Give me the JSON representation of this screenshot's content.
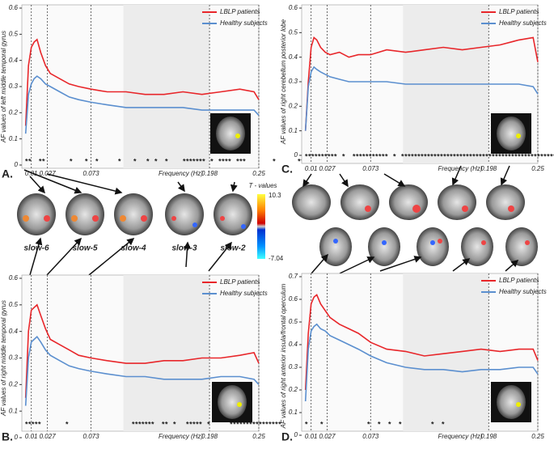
{
  "chart_data": [
    {
      "type": "line",
      "label": "A.",
      "ylabel": "AF values of left middle temporal gyrus",
      "xlabel": "Frequency (Hz)",
      "x": [
        0.004,
        0.007,
        0.01,
        0.013,
        0.016,
        0.02,
        0.025,
        0.03,
        0.04,
        0.05,
        0.06,
        0.073,
        0.09,
        0.11,
        0.13,
        0.15,
        0.17,
        0.19,
        0.21,
        0.23,
        0.245,
        0.25
      ],
      "series": [
        {
          "name": "LBLP patients",
          "color": "#e8262a",
          "values": [
            0.15,
            0.38,
            0.45,
            0.47,
            0.48,
            0.43,
            0.38,
            0.35,
            0.33,
            0.31,
            0.3,
            0.29,
            0.28,
            0.28,
            0.27,
            0.27,
            0.28,
            0.27,
            0.28,
            0.29,
            0.28,
            0.25
          ]
        },
        {
          "name": "Healthy subjects",
          "color": "#5b8fcf",
          "values": [
            0.12,
            0.27,
            0.31,
            0.33,
            0.34,
            0.33,
            0.31,
            0.3,
            0.28,
            0.26,
            0.25,
            0.24,
            0.23,
            0.22,
            0.22,
            0.22,
            0.22,
            0.21,
            0.21,
            0.21,
            0.21,
            0.19
          ]
        }
      ],
      "xlim": [
        0,
        0.25
      ],
      "xticks": [
        0.01,
        0.027,
        0.073,
        0.198,
        0.25
      ],
      "ylim": [
        0,
        0.6
      ],
      "yticks": [
        0,
        0.1,
        0.2,
        0.3,
        0.4,
        0.5,
        0.6
      ],
      "significance_marks": "**   **          *     *   *        *     *    *  *   *      *******  *  ****  ***           *         ********"
    },
    {
      "type": "line",
      "label": "B.",
      "ylabel": "AF values of right middle temporal gyrus",
      "xlabel": "Frequency (Hz)",
      "x": [
        0.004,
        0.007,
        0.01,
        0.013,
        0.016,
        0.02,
        0.025,
        0.03,
        0.04,
        0.05,
        0.06,
        0.073,
        0.09,
        0.11,
        0.13,
        0.15,
        0.17,
        0.19,
        0.21,
        0.23,
        0.245,
        0.25
      ],
      "series": [
        {
          "name": "LBLP patients",
          "color": "#e8262a",
          "values": [
            0.15,
            0.4,
            0.48,
            0.49,
            0.5,
            0.46,
            0.41,
            0.37,
            0.35,
            0.33,
            0.31,
            0.3,
            0.29,
            0.28,
            0.28,
            0.29,
            0.29,
            0.3,
            0.3,
            0.31,
            0.32,
            0.28
          ]
        },
        {
          "name": "Healthy subjects",
          "color": "#5b8fcf",
          "values": [
            0.12,
            0.3,
            0.36,
            0.37,
            0.38,
            0.36,
            0.33,
            0.31,
            0.29,
            0.27,
            0.26,
            0.25,
            0.24,
            0.23,
            0.23,
            0.22,
            0.22,
            0.22,
            0.23,
            0.23,
            0.22,
            0.2
          ]
        }
      ],
      "xlim": [
        0,
        0.25
      ],
      "xticks": [
        0.01,
        0.027,
        0.073,
        0.198,
        0.25
      ],
      "ylim": [
        0,
        0.6
      ],
      "yticks": [
        0,
        0.1,
        0.2,
        0.3,
        0.4,
        0.5,
        0.6
      ],
      "significance_marks": "*****          *                          *******   **  *    *****  *        ****************"
    },
    {
      "type": "line",
      "label": "C.",
      "ylabel": "AF values of right cerebellum posterior lobe",
      "xlabel": "Frequency (Hz)",
      "x": [
        0.004,
        0.007,
        0.01,
        0.013,
        0.016,
        0.02,
        0.025,
        0.03,
        0.04,
        0.05,
        0.06,
        0.073,
        0.09,
        0.11,
        0.13,
        0.15,
        0.17,
        0.19,
        0.21,
        0.23,
        0.245,
        0.25
      ],
      "series": [
        {
          "name": "LBLP patients",
          "color": "#e8262a",
          "values": [
            0.1,
            0.3,
            0.44,
            0.48,
            0.47,
            0.44,
            0.42,
            0.41,
            0.42,
            0.4,
            0.41,
            0.41,
            0.43,
            0.42,
            0.43,
            0.44,
            0.43,
            0.44,
            0.45,
            0.47,
            0.48,
            0.38
          ]
        },
        {
          "name": "Healthy subjects",
          "color": "#5b8fcf",
          "values": [
            0.1,
            0.28,
            0.34,
            0.36,
            0.35,
            0.34,
            0.33,
            0.32,
            0.31,
            0.3,
            0.3,
            0.3,
            0.3,
            0.29,
            0.29,
            0.29,
            0.29,
            0.29,
            0.29,
            0.29,
            0.28,
            0.25
          ]
        }
      ],
      "xlim": [
        0,
        0.25
      ],
      "xticks": [
        0.01,
        0.027,
        0.073,
        0.198,
        0.25
      ],
      "ylim": [
        0,
        0.6
      ],
      "yticks": [
        0,
        0.1,
        0.2,
        0.3,
        0.4,
        0.5,
        0.6
      ],
      "significance_marks": "**********  *   ***********  *  **************************************************************"
    },
    {
      "type": "line",
      "label": "D.",
      "ylabel": "AF values of right anterior insula/frontal operculum",
      "xlabel": "Frequency (Hz)",
      "x": [
        0.004,
        0.007,
        0.01,
        0.013,
        0.016,
        0.02,
        0.025,
        0.03,
        0.04,
        0.05,
        0.06,
        0.073,
        0.09,
        0.11,
        0.13,
        0.15,
        0.17,
        0.19,
        0.21,
        0.23,
        0.245,
        0.25
      ],
      "series": [
        {
          "name": "LBLP patients",
          "color": "#e8262a",
          "values": [
            0.2,
            0.45,
            0.58,
            0.61,
            0.62,
            0.58,
            0.55,
            0.52,
            0.49,
            0.47,
            0.45,
            0.41,
            0.38,
            0.37,
            0.35,
            0.36,
            0.37,
            0.38,
            0.37,
            0.38,
            0.38,
            0.33
          ]
        },
        {
          "name": "Healthy subjects",
          "color": "#5b8fcf",
          "values": [
            0.15,
            0.38,
            0.46,
            0.48,
            0.49,
            0.47,
            0.46,
            0.44,
            0.42,
            0.4,
            0.38,
            0.35,
            0.32,
            0.3,
            0.29,
            0.29,
            0.28,
            0.29,
            0.29,
            0.3,
            0.3,
            0.27
          ]
        }
      ],
      "xlim": [
        0,
        0.25
      ],
      "xticks": [
        0.01,
        0.027,
        0.073,
        0.198,
        0.25
      ],
      "ylim": [
        0,
        0.7
      ],
      "yticks": [
        0,
        0.1,
        0.2,
        0.3,
        0.4,
        0.5,
        0.6,
        0.7
      ],
      "significance_marks": "*     *                  *   *   *   *            *   *"
    }
  ],
  "brain_maps": {
    "labels": [
      "slow-6",
      "slow-5",
      "slow-4",
      "slow-3",
      "slow-2"
    ],
    "colorbar_title": "T - values",
    "colorbar_max": 10.3,
    "colorbar_min": -7.04
  }
}
